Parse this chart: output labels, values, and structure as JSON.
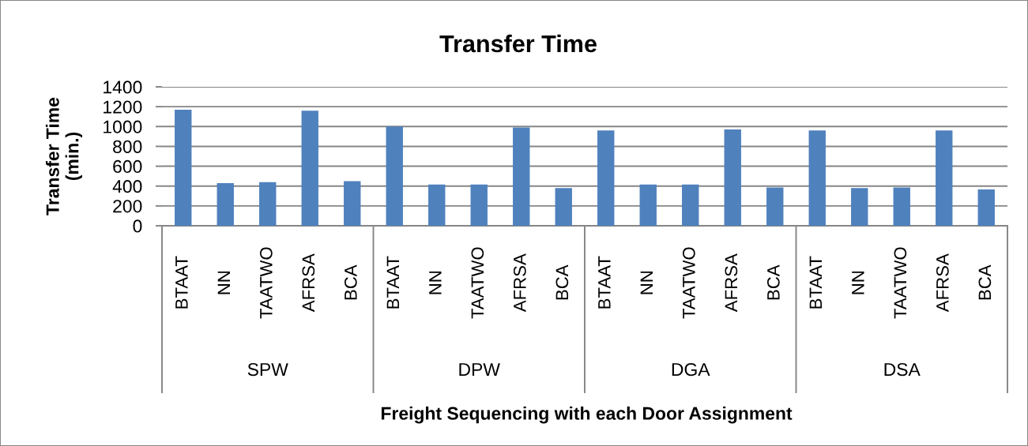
{
  "chart_data": {
    "type": "bar",
    "title": "Transfer Time",
    "xlabel": "Freight Sequencing with each Door Assignment",
    "ylabel": "Transfer Time\n(min.)",
    "categories": [
      "BTAAT",
      "NN",
      "TAATWO",
      "AFRSA",
      "BCA",
      "BTAAT",
      "NN",
      "TAATWO",
      "AFRSA",
      "BCA",
      "BTAAT",
      "NN",
      "TAATWO",
      "AFRSA",
      "BCA",
      "BTAAT",
      "NN",
      "TAATWO",
      "AFRSA",
      "BCA"
    ],
    "values": [
      1170,
      430,
      440,
      1160,
      450,
      1000,
      415,
      415,
      990,
      380,
      960,
      415,
      415,
      970,
      385,
      960,
      380,
      385,
      960,
      365
    ],
    "color": "#4f81bd",
    "annotations": [
      "SPW",
      "DPW",
      "DGA",
      "DSA"
    ],
    "ylim": [
      0,
      1400
    ],
    "yticks": [
      0,
      200,
      400,
      600,
      800,
      1000,
      1200,
      1400
    ],
    "grid": "y"
  }
}
